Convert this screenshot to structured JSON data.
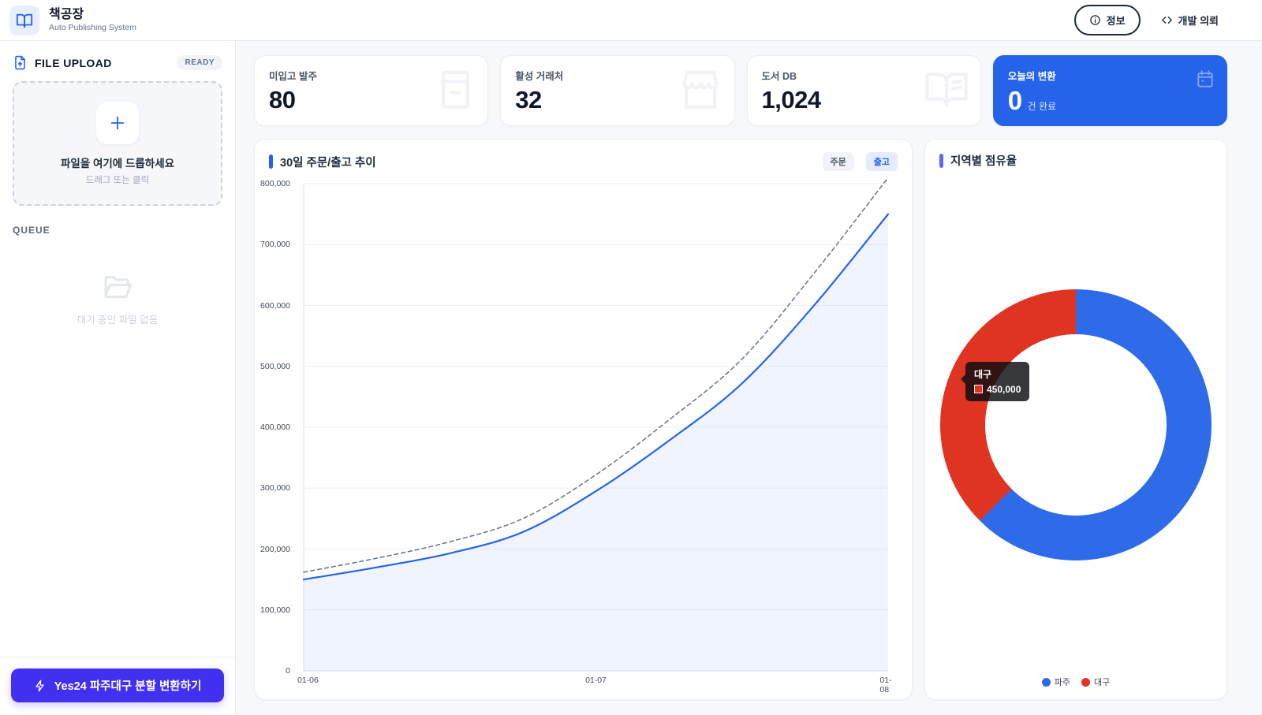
{
  "colors": {
    "primary_blue": "#2563EB",
    "accent_indigo": "#6366F1",
    "convert_button": "#4230F0",
    "order_line_gray": "#64748B",
    "donut_blue": "#2E6BE8",
    "donut_red": "#E03422"
  },
  "header": {
    "app_name": "책공장",
    "app_subtitle": "Auto Publishing System",
    "info_button_label": "정보",
    "dev_request_label": "개발 의뢰"
  },
  "sidebar": {
    "upload_title": "FILE UPLOAD",
    "ready_badge": "READY",
    "dropzone_title": "파일을 여기에 드롭하세요",
    "dropzone_subtitle": "드래그 또는 클릭",
    "queue_title": "QUEUE",
    "queue_empty": "대기 중인 파일 없음",
    "convert_button_label": "Yes24 파주대구 분할 변환하기"
  },
  "stats": [
    {
      "label": "미입고 발주",
      "value": "80",
      "icon": "box"
    },
    {
      "label": "활성 거래처",
      "value": "32",
      "icon": "storefront"
    },
    {
      "label": "도서 DB",
      "value": "1,024",
      "icon": "open-book"
    },
    {
      "label": "오늘의 변환",
      "value": "0",
      "suffix": "건 완료",
      "icon": "calendar",
      "highlight": true
    }
  ],
  "chart_data": [
    {
      "type": "line",
      "title": "30일 주문/출고 추이",
      "legend": [
        "주문",
        "출고"
      ],
      "legend_position": "top-right",
      "x_labels": [
        "01-06",
        "01-07",
        "01-08"
      ],
      "ylim": [
        0,
        800000
      ],
      "y_ticks": [
        "800,000",
        "700,000",
        "600,000",
        "500,000",
        "400,000",
        "300,000",
        "200,000",
        "100,000",
        "0"
      ],
      "grid": true,
      "series": [
        {
          "name": "주문",
          "style": "dashed",
          "color": "#64748B",
          "values": [
            162000,
            185000,
            212000,
            250000,
            322000,
            412000,
            512000,
            655000,
            810000
          ]
        },
        {
          "name": "출고",
          "style": "solid",
          "color": "#2563EB",
          "fill": "rgba(37,99,235,0.07)",
          "values": [
            150000,
            170000,
            193000,
            228000,
            295000,
            378000,
            472000,
            602000,
            750000
          ]
        }
      ]
    },
    {
      "type": "donut",
      "title": "지역별 점유율",
      "slices": [
        {
          "label": "파주",
          "value": 750000,
          "color": "#2E6BE8"
        },
        {
          "label": "대구",
          "value": 450000,
          "color": "#E03422"
        }
      ],
      "tooltip": {
        "label": "대구",
        "value": "450,000"
      },
      "legend_position": "bottom"
    }
  ]
}
